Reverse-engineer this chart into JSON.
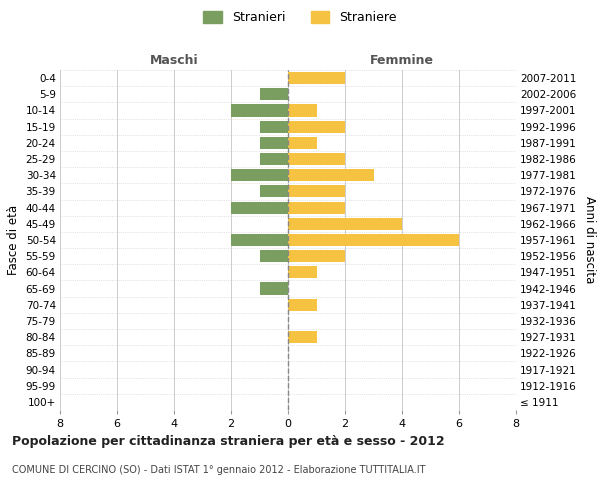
{
  "age_groups": [
    "100+",
    "95-99",
    "90-94",
    "85-89",
    "80-84",
    "75-79",
    "70-74",
    "65-69",
    "60-64",
    "55-59",
    "50-54",
    "45-49",
    "40-44",
    "35-39",
    "30-34",
    "25-29",
    "20-24",
    "15-19",
    "10-14",
    "5-9",
    "0-4"
  ],
  "birth_years": [
    "≤ 1911",
    "1912-1916",
    "1917-1921",
    "1922-1926",
    "1927-1931",
    "1932-1936",
    "1937-1941",
    "1942-1946",
    "1947-1951",
    "1952-1956",
    "1957-1961",
    "1962-1966",
    "1967-1971",
    "1972-1976",
    "1977-1981",
    "1982-1986",
    "1987-1991",
    "1992-1996",
    "1997-2001",
    "2002-2006",
    "2007-2011"
  ],
  "maschi": [
    0,
    0,
    0,
    0,
    0,
    0,
    0,
    1,
    0,
    1,
    2,
    0,
    2,
    1,
    2,
    1,
    1,
    1,
    2,
    1,
    0
  ],
  "femmine": [
    0,
    0,
    0,
    0,
    1,
    0,
    1,
    0,
    1,
    2,
    6,
    4,
    2,
    2,
    3,
    2,
    1,
    2,
    1,
    0,
    2
  ],
  "color_maschi": "#7A9E5F",
  "color_femmine": "#F5C242",
  "xlim": 8,
  "title": "Popolazione per cittadinanza straniera per età e sesso - 2012",
  "subtitle": "COMUNE DI CERCINO (SO) - Dati ISTAT 1° gennaio 2012 - Elaborazione TUTTITALIA.IT",
  "label_maschi": "Stranieri",
  "label_femmine": "Straniere",
  "xlabel_left": "Maschi",
  "xlabel_right": "Femmine",
  "ylabel": "Fasce di età",
  "ylabel_right": "Anni di nascita",
  "background_color": "#FFFFFF",
  "grid_color": "#CCCCCC"
}
